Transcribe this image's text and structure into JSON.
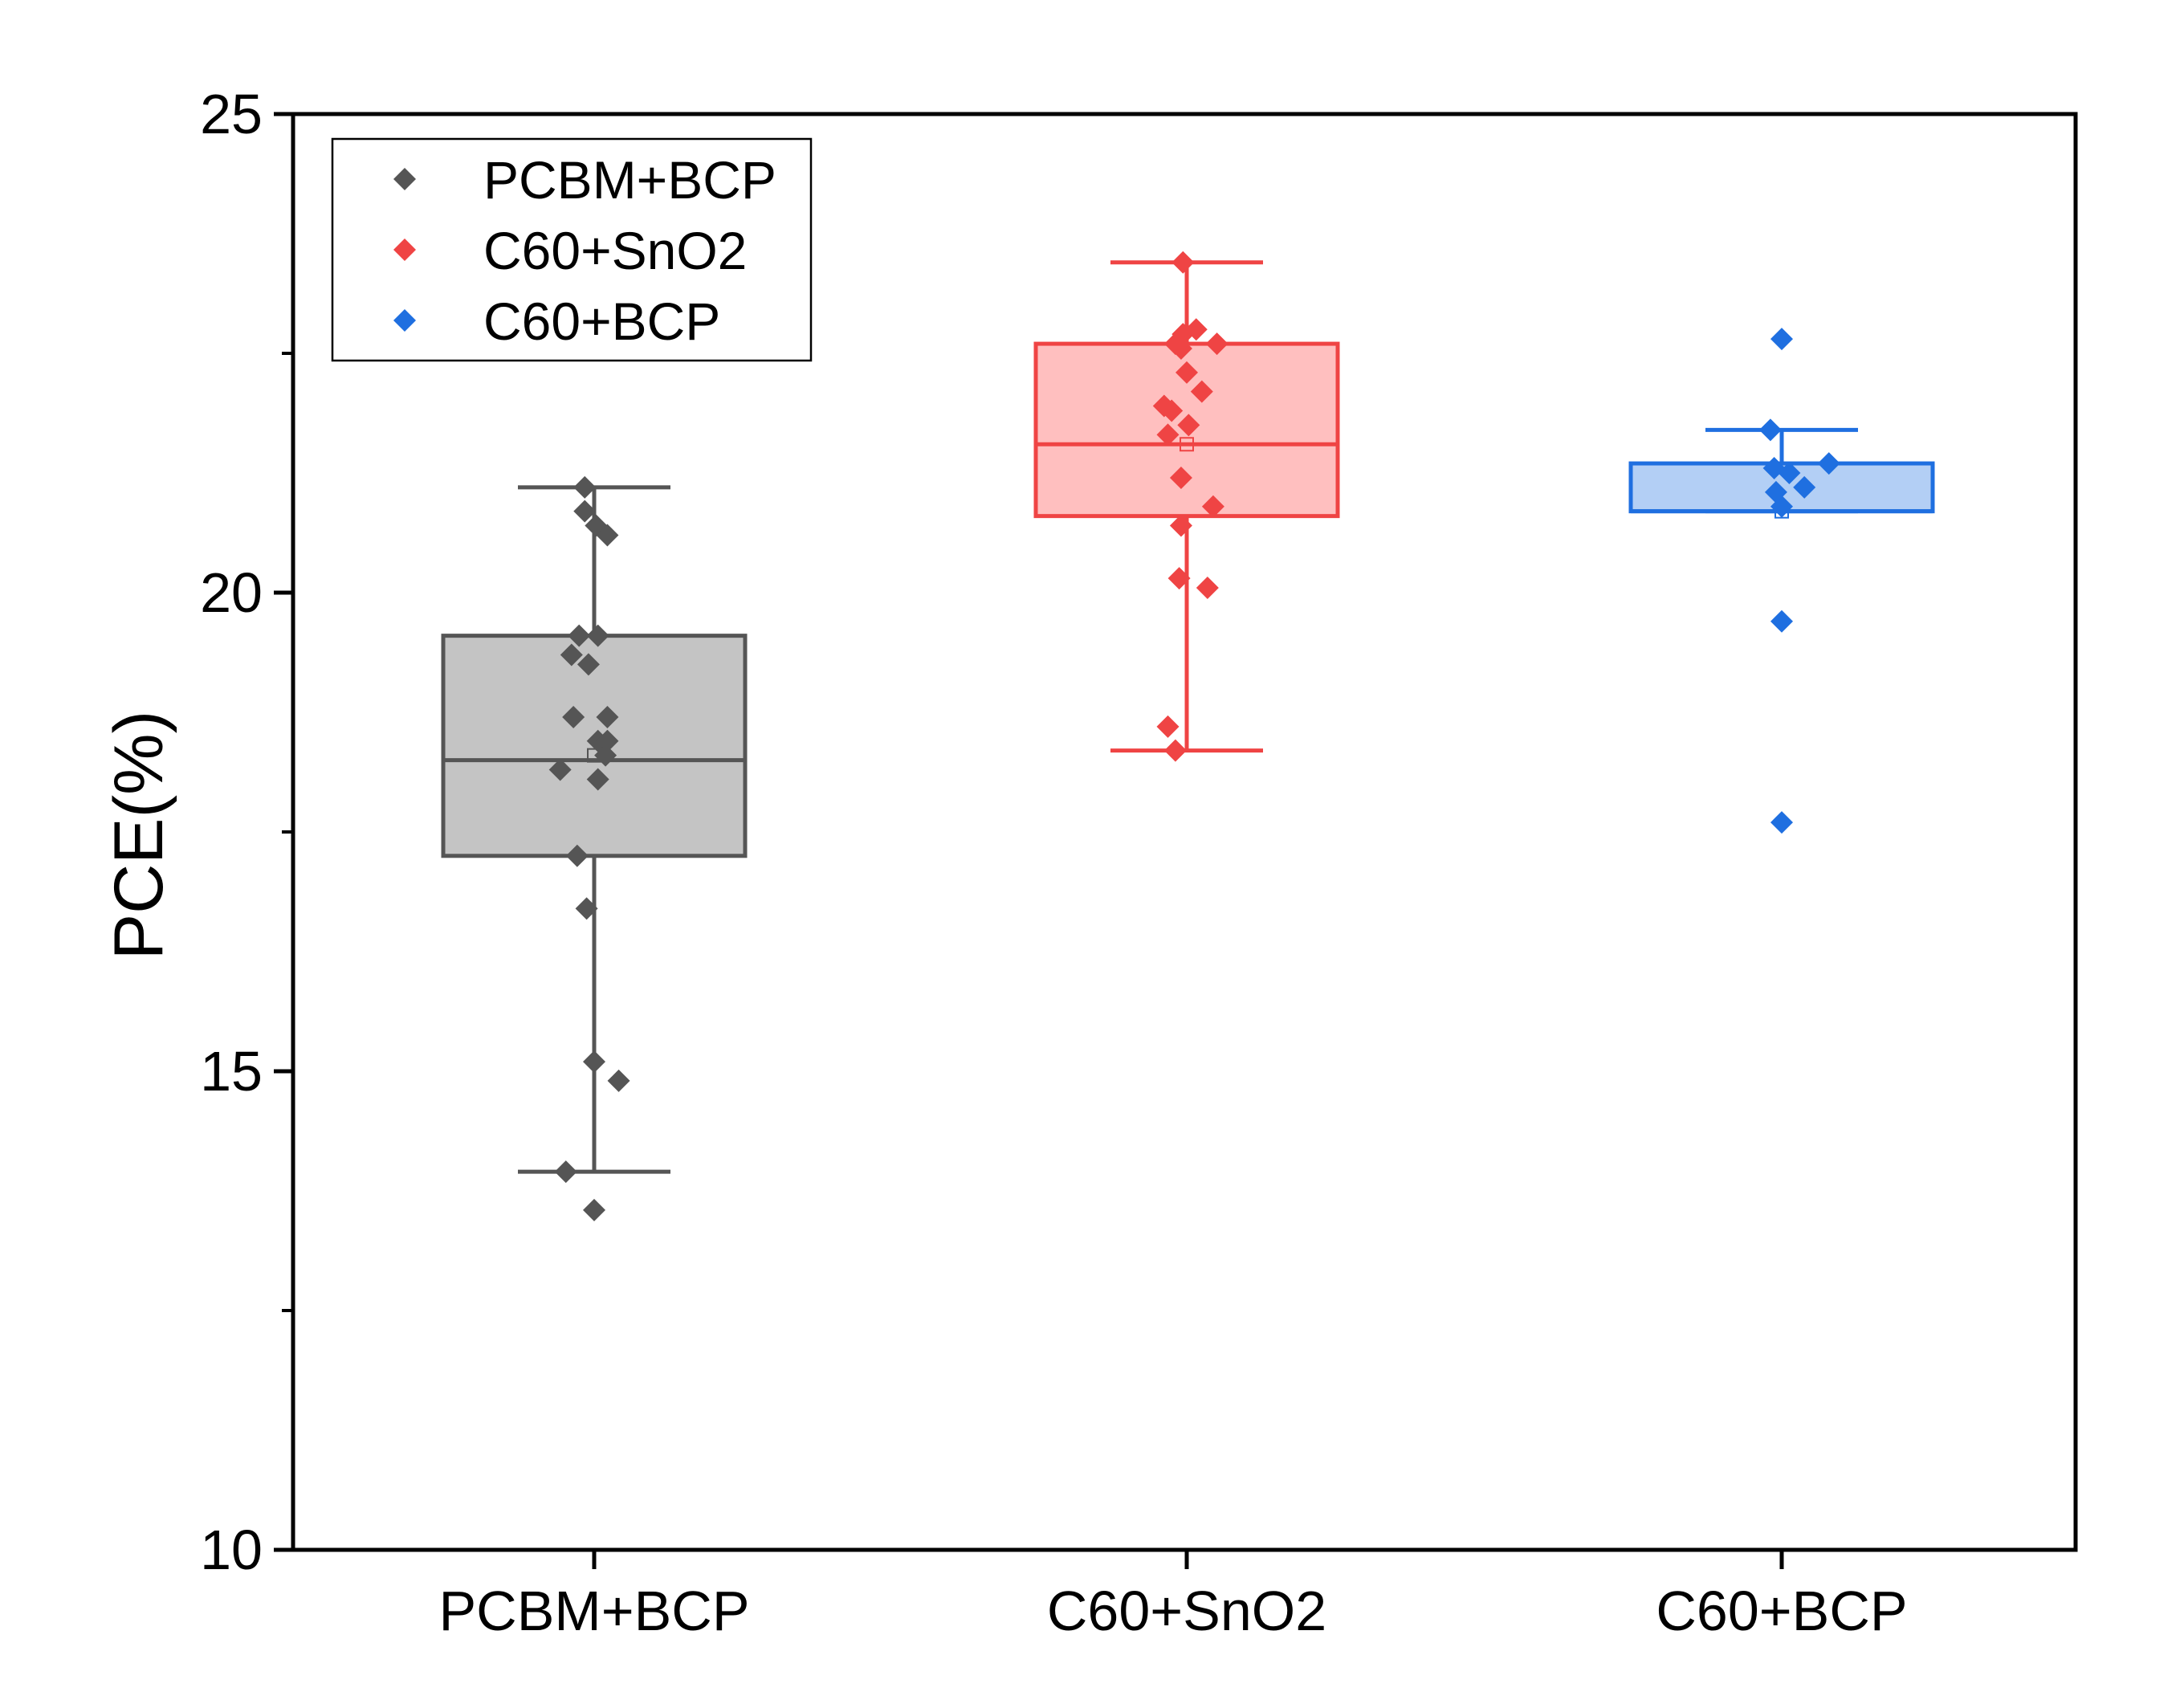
{
  "chart_data": {
    "type": "box",
    "ylabel": "PCE(%)",
    "ylim": [
      10,
      25
    ],
    "yticks": [
      "10",
      "15",
      "20",
      "25"
    ],
    "yminor_ticks": [
      12.5,
      17.5,
      22.5
    ],
    "categories": [
      "PCBM+BCP",
      "C60+SnO2",
      "C60+BCP"
    ],
    "legend": {
      "position": "top-left",
      "entries": [
        "PCBM+BCP",
        "C60+SnO2",
        "C60+BCP"
      ]
    },
    "series": [
      {
        "name": "PCBM+BCP",
        "color": "#555555",
        "fill": "#c4c4c4",
        "box": {
          "whisker_low": 13.95,
          "q1": 17.25,
          "median": 18.25,
          "q3": 19.55,
          "whisker_high": 21.1,
          "mean": 18.3
        },
        "points": [
          {
            "jitter": -0.05,
            "value": 21.1
          },
          {
            "jitter": -0.05,
            "value": 20.85
          },
          {
            "jitter": 0.01,
            "value": 20.7
          },
          {
            "jitter": 0.07,
            "value": 20.6
          },
          {
            "jitter": -0.08,
            "value": 19.55
          },
          {
            "jitter": 0.02,
            "value": 19.55
          },
          {
            "jitter": -0.12,
            "value": 19.35
          },
          {
            "jitter": -0.03,
            "value": 19.25
          },
          {
            "jitter": -0.11,
            "value": 18.7
          },
          {
            "jitter": 0.07,
            "value": 18.7
          },
          {
            "jitter": 0.02,
            "value": 18.45
          },
          {
            "jitter": 0.07,
            "value": 18.45
          },
          {
            "jitter": 0.06,
            "value": 18.3
          },
          {
            "jitter": -0.18,
            "value": 18.15
          },
          {
            "jitter": 0.02,
            "value": 18.05
          },
          {
            "jitter": -0.09,
            "value": 17.25
          },
          {
            "jitter": -0.04,
            "value": 16.7
          },
          {
            "jitter": 0.0,
            "value": 15.1
          },
          {
            "jitter": 0.13,
            "value": 14.9
          },
          {
            "jitter": -0.15,
            "value": 13.95
          },
          {
            "jitter": 0.0,
            "value": 13.55
          }
        ]
      },
      {
        "name": "C60+SnO2",
        "color": "#ef4444",
        "fill": "#ffbfbf",
        "box": {
          "whisker_low": 18.35,
          "q1": 20.8,
          "median": 21.55,
          "q3": 22.6,
          "whisker_high": 23.45,
          "mean": 21.55
        },
        "points": [
          {
            "jitter": -0.02,
            "value": 23.45
          },
          {
            "jitter": 0.05,
            "value": 22.75
          },
          {
            "jitter": -0.02,
            "value": 22.7
          },
          {
            "jitter": -0.06,
            "value": 22.6
          },
          {
            "jitter": 0.16,
            "value": 22.6
          },
          {
            "jitter": -0.03,
            "value": 22.55
          },
          {
            "jitter": 0.0,
            "value": 22.3
          },
          {
            "jitter": 0.08,
            "value": 22.1
          },
          {
            "jitter": -0.12,
            "value": 21.95
          },
          {
            "jitter": -0.08,
            "value": 21.9
          },
          {
            "jitter": 0.01,
            "value": 21.75
          },
          {
            "jitter": -0.1,
            "value": 21.65
          },
          {
            "jitter": -0.03,
            "value": 21.2
          },
          {
            "jitter": 0.14,
            "value": 20.9
          },
          {
            "jitter": -0.03,
            "value": 20.7
          },
          {
            "jitter": -0.04,
            "value": 20.15
          },
          {
            "jitter": 0.11,
            "value": 20.05
          },
          {
            "jitter": -0.1,
            "value": 18.6
          },
          {
            "jitter": -0.06,
            "value": 18.35
          }
        ]
      },
      {
        "name": "C60+BCP",
        "color": "#1f6fe0",
        "fill": "#b3cff5",
        "box": {
          "whisker_low": 20.85,
          "q1": 20.85,
          "median": 20.85,
          "q3": 21.35,
          "whisker_high": 21.7,
          "mean": 20.85
        },
        "points": [
          {
            "jitter": 0.0,
            "value": 22.65
          },
          {
            "jitter": -0.06,
            "value": 21.7
          },
          {
            "jitter": 0.25,
            "value": 21.35
          },
          {
            "jitter": -0.04,
            "value": 21.3
          },
          {
            "jitter": 0.04,
            "value": 21.25
          },
          {
            "jitter": 0.12,
            "value": 21.1
          },
          {
            "jitter": -0.03,
            "value": 21.05
          },
          {
            "jitter": 0.0,
            "value": 20.9
          },
          {
            "jitter": 0.0,
            "value": 19.7
          },
          {
            "jitter": 0.0,
            "value": 17.6
          }
        ]
      }
    ]
  }
}
